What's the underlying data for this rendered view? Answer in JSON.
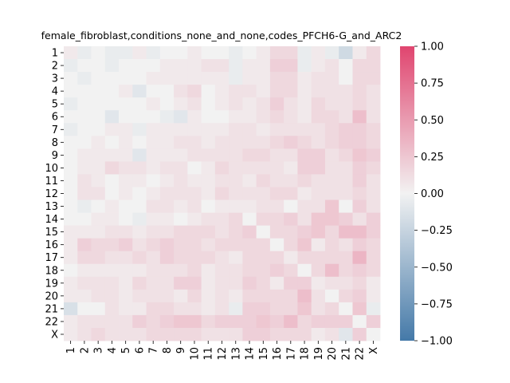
{
  "chart_data": {
    "type": "heatmap",
    "title": "female_fibroblast,conditions_none_and_none,codes_PFCH6-G_and_ARC2",
    "xlabel": "",
    "ylabel": "",
    "categories": [
      "1",
      "2",
      "3",
      "4",
      "5",
      "6",
      "7",
      "8",
      "9",
      "10",
      "11",
      "12",
      "13",
      "14",
      "15",
      "16",
      "17",
      "18",
      "19",
      "20",
      "21",
      "22",
      "X"
    ],
    "colorbar": {
      "vmin": -1.0,
      "vmax": 1.0,
      "ticks": [
        "1.00",
        "0.75",
        "0.50",
        "0.25",
        "0.00",
        "−0.25",
        "−0.50",
        "−0.75",
        "−1.00"
      ],
      "colors": {
        "negative": "#4479a8",
        "neutral": "#f2f2f2",
        "positive": "#e0456f"
      }
    },
    "values": [
      [
        0.05,
        -0.05,
        0.0,
        -0.05,
        -0.05,
        0.05,
        -0.05,
        0.0,
        0.0,
        0.05,
        0.0,
        0.0,
        -0.05,
        0.0,
        0.05,
        0.15,
        0.15,
        -0.05,
        0.05,
        -0.05,
        -0.2,
        0.05,
        0.15
      ],
      [
        -0.05,
        0.0,
        0.0,
        -0.05,
        0.0,
        0.0,
        0.0,
        0.05,
        0.05,
        0.05,
        0.1,
        0.1,
        -0.05,
        0.05,
        0.05,
        0.2,
        0.2,
        -0.05,
        0.05,
        0.1,
        0.0,
        0.15,
        0.15
      ],
      [
        0.0,
        -0.05,
        0.0,
        0.0,
        0.0,
        0.0,
        0.05,
        0.05,
        0.05,
        0.05,
        0.05,
        0.05,
        -0.05,
        0.05,
        0.05,
        0.15,
        0.15,
        0.05,
        0.1,
        0.1,
        0.0,
        0.15,
        0.15
      ],
      [
        0.0,
        0.0,
        0.0,
        0.0,
        0.05,
        -0.1,
        0.0,
        0.0,
        0.1,
        0.15,
        0.0,
        0.05,
        0.1,
        0.1,
        0.05,
        0.15,
        0.15,
        0.05,
        0.1,
        0.1,
        0.1,
        0.15,
        0.1
      ],
      [
        -0.05,
        0.0,
        0.0,
        0.0,
        0.0,
        0.0,
        0.05,
        0.0,
        0.05,
        0.1,
        0.0,
        0.05,
        0.1,
        0.05,
        0.1,
        0.2,
        0.1,
        0.05,
        0.15,
        0.1,
        0.1,
        0.15,
        0.1
      ],
      [
        0.0,
        0.0,
        0.0,
        -0.1,
        0.0,
        0.0,
        0.0,
        -0.05,
        -0.1,
        0.05,
        0.0,
        0.0,
        0.05,
        0.05,
        0.1,
        0.15,
        0.1,
        0.05,
        0.15,
        0.15,
        0.1,
        0.3,
        0.1
      ],
      [
        -0.05,
        0.0,
        0.0,
        0.05,
        0.05,
        -0.05,
        0.05,
        0.05,
        0.05,
        0.05,
        0.05,
        0.05,
        0.1,
        0.1,
        0.05,
        0.1,
        0.1,
        0.1,
        0.1,
        0.15,
        0.2,
        0.2,
        0.15
      ],
      [
        0.0,
        0.0,
        0.05,
        0.0,
        0.05,
        0.0,
        0.05,
        0.05,
        0.1,
        0.1,
        0.05,
        0.1,
        0.1,
        0.1,
        0.1,
        0.15,
        0.2,
        0.15,
        0.1,
        0.15,
        0.2,
        0.2,
        0.15
      ],
      [
        0.0,
        0.05,
        0.05,
        0.05,
        0.05,
        -0.1,
        0.05,
        0.05,
        0.05,
        0.1,
        0.1,
        0.1,
        0.1,
        0.15,
        0.15,
        0.1,
        0.1,
        0.2,
        0.2,
        0.1,
        0.15,
        0.25,
        0.2
      ],
      [
        0.0,
        0.05,
        0.05,
        0.15,
        0.1,
        0.1,
        0.05,
        0.1,
        0.1,
        0.0,
        0.05,
        0.15,
        0.1,
        0.1,
        0.1,
        0.1,
        0.05,
        0.2,
        0.2,
        0.1,
        0.1,
        0.2,
        0.15
      ],
      [
        0.0,
        0.1,
        0.05,
        0.0,
        0.05,
        0.05,
        0.0,
        0.05,
        0.1,
        0.05,
        0.05,
        0.1,
        0.1,
        0.05,
        0.15,
        0.1,
        0.1,
        0.15,
        0.1,
        0.1,
        0.1,
        0.2,
        0.1
      ],
      [
        0.0,
        0.1,
        0.1,
        0.0,
        0.05,
        0.0,
        0.05,
        0.1,
        0.1,
        0.1,
        0.05,
        0.15,
        0.1,
        0.1,
        0.1,
        0.15,
        0.15,
        0.05,
        0.1,
        0.1,
        0.1,
        0.15,
        0.1
      ],
      [
        0.0,
        -0.05,
        0.0,
        0.05,
        0.0,
        0.0,
        0.1,
        0.1,
        0.05,
        0.1,
        0.0,
        0.05,
        0.05,
        0.05,
        0.1,
        0.1,
        0.0,
        0.1,
        0.1,
        0.25,
        0.0,
        0.2,
        0.1
      ],
      [
        0.0,
        0.0,
        0.05,
        0.05,
        0.0,
        -0.05,
        0.05,
        0.05,
        0.0,
        0.05,
        0.1,
        0.1,
        0.15,
        0.0,
        0.15,
        0.15,
        0.2,
        0.1,
        0.25,
        0.25,
        0.2,
        0.1,
        0.2
      ],
      [
        0.05,
        0.05,
        0.05,
        0.1,
        0.1,
        0.05,
        0.1,
        0.1,
        0.15,
        0.15,
        0.15,
        0.1,
        0.15,
        0.2,
        0.0,
        0.15,
        0.15,
        0.2,
        0.25,
        0.15,
        0.3,
        0.3,
        0.2
      ],
      [
        0.05,
        0.2,
        0.15,
        0.15,
        0.2,
        0.1,
        0.15,
        0.2,
        0.15,
        0.15,
        0.1,
        0.15,
        0.15,
        0.15,
        0.15,
        0.0,
        0.15,
        0.25,
        0.05,
        0.15,
        0.1,
        0.2,
        0.15
      ],
      [
        0.05,
        0.15,
        0.15,
        0.1,
        0.1,
        0.15,
        0.1,
        0.2,
        0.15,
        0.15,
        0.15,
        0.1,
        0.05,
        0.15,
        0.15,
        0.15,
        0.05,
        0.15,
        0.15,
        0.15,
        0.15,
        0.35,
        0.15
      ],
      [
        0.0,
        0.05,
        0.05,
        0.05,
        0.05,
        0.05,
        0.1,
        0.1,
        0.1,
        0.15,
        0.05,
        0.1,
        0.1,
        0.15,
        0.15,
        0.2,
        0.15,
        0.0,
        0.15,
        0.3,
        0.15,
        0.2,
        0.15
      ],
      [
        0.05,
        0.1,
        0.1,
        0.1,
        0.05,
        0.15,
        0.1,
        0.1,
        0.2,
        0.2,
        0.05,
        0.1,
        0.1,
        0.2,
        0.15,
        0.05,
        0.2,
        0.2,
        0.05,
        0.1,
        0.1,
        0.15,
        0.05
      ],
      [
        0.05,
        0.05,
        0.1,
        0.1,
        0.05,
        0.1,
        0.1,
        0.1,
        0.05,
        0.15,
        0.05,
        0.1,
        0.05,
        0.15,
        0.15,
        0.15,
        0.15,
        0.3,
        0.1,
        0.0,
        0.15,
        0.2,
        0.05
      ],
      [
        -0.15,
        0.0,
        0.0,
        0.1,
        0.05,
        0.05,
        0.15,
        0.15,
        0.1,
        0.1,
        0.05,
        0.1,
        -0.05,
        0.2,
        0.2,
        0.15,
        0.15,
        0.25,
        0.1,
        0.15,
        0.0,
        0.25,
        -0.05
      ],
      [
        0.05,
        0.1,
        0.1,
        0.1,
        0.1,
        0.2,
        0.15,
        0.2,
        0.25,
        0.25,
        0.15,
        0.2,
        0.2,
        0.2,
        0.25,
        0.2,
        0.3,
        0.15,
        0.2,
        0.2,
        0.2,
        0.0,
        0.2
      ],
      [
        0.05,
        0.1,
        0.15,
        0.1,
        0.1,
        0.1,
        0.15,
        0.15,
        0.15,
        0.15,
        0.1,
        0.1,
        0.1,
        0.2,
        0.2,
        0.15,
        0.15,
        0.15,
        0.05,
        0.1,
        -0.1,
        0.2,
        0.0
      ]
    ]
  }
}
